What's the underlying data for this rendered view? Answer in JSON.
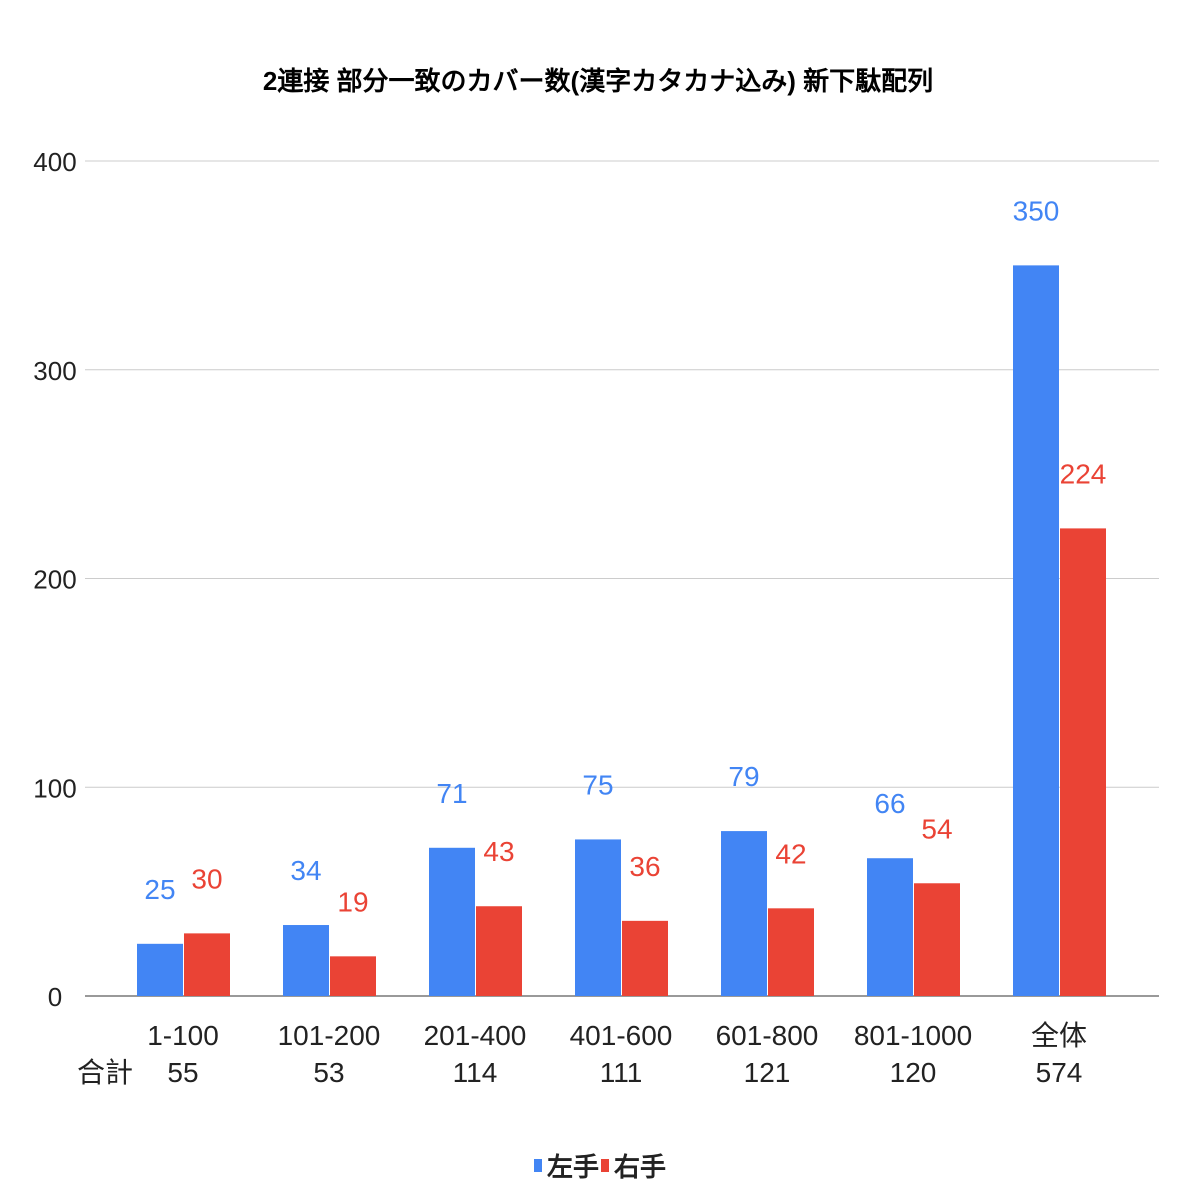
{
  "chart_data": {
    "type": "bar",
    "title": "2連接 部分一致のカバー数(漢字カタカナ込み) 新下駄配列",
    "categories": [
      "1-100",
      "101-200",
      "201-400",
      "401-600",
      "601-800",
      "801-1000",
      "全体"
    ],
    "totals_label": "合計",
    "totals": [
      "55",
      "53",
      "114",
      "111",
      "121",
      "120",
      "574"
    ],
    "series": [
      {
        "name": "左手",
        "color": "#4285f4",
        "values": [
          25,
          34,
          71,
          75,
          79,
          66,
          350
        ]
      },
      {
        "name": "右手",
        "color": "#ea4335",
        "values": [
          30,
          19,
          43,
          36,
          42,
          54,
          224
        ]
      }
    ],
    "ylim": [
      0,
      400
    ],
    "yticks": [
      "0",
      "100",
      "200",
      "300",
      "400"
    ],
    "grid": true,
    "legend": "bottom",
    "xlabel": "",
    "ylabel": ""
  }
}
